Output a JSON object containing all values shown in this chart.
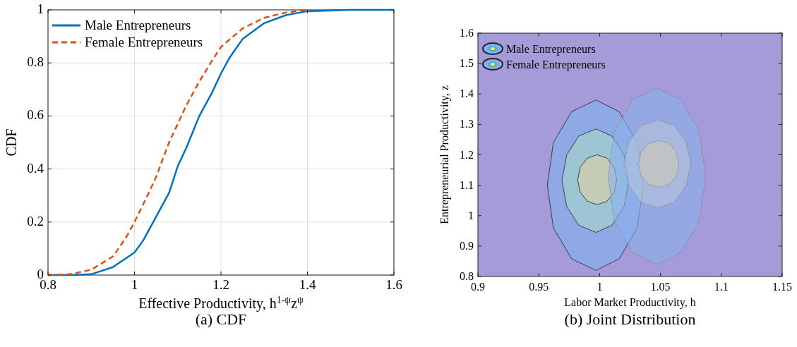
{
  "chart_data": [
    {
      "type": "line",
      "title": "(a) CDF",
      "xlabel": "Effective Productivity, h$^{1-ψ}$z$^{ψ}$",
      "ylabel": "CDF",
      "xlim": [
        0.8,
        1.6
      ],
      "xticks": [
        0.8,
        1,
        1.2,
        1.4,
        1.6
      ],
      "ylim": [
        0,
        1
      ],
      "yticks": [
        0,
        0.2,
        0.4,
        0.6,
        0.8,
        1
      ],
      "grid": true,
      "legend": "top left",
      "series": [
        {
          "name": "Male Entrepreneurs",
          "color": "#0072bd",
          "line_style": "solid",
          "x": [
            0.8,
            0.85,
            0.9,
            0.95,
            1,
            1.02,
            1.05,
            1.08,
            1.1,
            1.12,
            1.15,
            1.18,
            1.2,
            1.22,
            1.25,
            1.3,
            1.35,
            1.4,
            1.5,
            1.6
          ],
          "values": [
            0,
            0,
            0.003,
            0.03,
            0.085,
            0.13,
            0.22,
            0.31,
            0.41,
            0.48,
            0.6,
            0.69,
            0.76,
            0.82,
            0.89,
            0.95,
            0.98,
            0.995,
            1,
            1
          ]
        },
        {
          "name": "Female Entrepreneurs",
          "color": "#d95319",
          "line_style": "dashed",
          "x": [
            0.8,
            0.85,
            0.9,
            0.95,
            0.98,
            1,
            1.03,
            1.05,
            1.08,
            1.1,
            1.12,
            1.15,
            1.18,
            1.2,
            1.25,
            1.3,
            1.35,
            1.4
          ],
          "values": [
            0,
            0.003,
            0.02,
            0.07,
            0.14,
            0.2,
            0.3,
            0.37,
            0.5,
            0.57,
            0.64,
            0.73,
            0.81,
            0.86,
            0.93,
            0.97,
            0.99,
            1
          ]
        }
      ]
    },
    {
      "type": "area",
      "title": "(b) Joint Distribution",
      "xlabel": "Labor Market Productivity, h",
      "ylabel": "Entrepreneurial Productivity, z",
      "xlim": [
        0.9,
        1.15
      ],
      "xticks": [
        0.9,
        0.95,
        1,
        1.05,
        1.1,
        1.15
      ],
      "ylim": [
        0.8,
        1.6
      ],
      "yticks": [
        0.8,
        0.9,
        1,
        1.1,
        1.2,
        1.3,
        1.4,
        1.5,
        1.6
      ],
      "legend": "top left",
      "bands": [
        {
          "axis": "y",
          "from": 0.8,
          "to": 1.6,
          "color": "#a59bd8"
        }
      ],
      "series": [
        {
          "name": "Male Entrepreneurs",
          "color": "#7fb2ee",
          "line_style": "solid",
          "x": [
            1.036,
            1.031,
            1.016,
            0.997,
            0.977,
            0.962,
            0.957,
            0.962,
            0.977,
            0.997,
            1.016,
            1.031,
            1.036
          ],
          "values": [
            1.1,
            1.24,
            1.342,
            1.38,
            1.342,
            1.24,
            1.1,
            0.96,
            0.858,
            0.82,
            0.858,
            0.96,
            1.1
          ]
        },
        {
          "color": "#a7d8c8",
          "line_style": "solid",
          "x": [
            1.024,
            1.02,
            1.01,
            0.997,
            0.983,
            0.973,
            0.969,
            0.973,
            0.983,
            0.997,
            1.01,
            1.02,
            1.024
          ],
          "values": [
            1.115,
            1.2,
            1.262,
            1.285,
            1.262,
            1.2,
            1.115,
            1.03,
            0.968,
            0.945,
            0.968,
            1.03,
            1.115
          ]
        },
        {
          "color": "#e0d0a0",
          "line_style": "solid",
          "x": [
            1.014,
            1.012,
            1.006,
            0.998,
            0.99,
            0.984,
            0.982,
            0.984,
            0.99,
            0.998,
            1.006,
            1.012,
            1.014
          ],
          "values": [
            1.118,
            1.159,
            1.189,
            1.2,
            1.189,
            1.159,
            1.118,
            1.077,
            1.047,
            1.036,
            1.047,
            1.077,
            1.118
          ]
        },
        {
          "name": "Female Entrepreneurs",
          "color": "#8ab0ec",
          "line_style": "dotted",
          "x": [
            1.087,
            1.082,
            1.067,
            1.047,
            1.027,
            1.012,
            1.007,
            1.012,
            1.027,
            1.047,
            1.067,
            1.082,
            1.087
          ],
          "values": [
            1.13,
            1.275,
            1.381,
            1.42,
            1.381,
            1.275,
            1.13,
            0.985,
            0.879,
            0.84,
            0.879,
            0.985,
            1.13
          ]
        },
        {
          "color": "#b8c4d8",
          "line_style": "dotted",
          "x": [
            1.075,
            1.071,
            1.061,
            1.048,
            1.034,
            1.024,
            1.02,
            1.024,
            1.034,
            1.048,
            1.061,
            1.071,
            1.075
          ],
          "values": [
            1.17,
            1.243,
            1.296,
            1.315,
            1.296,
            1.243,
            1.17,
            1.098,
            1.044,
            1.025,
            1.044,
            1.098,
            1.17
          ]
        },
        {
          "color": "#d0cab8",
          "line_style": "dotted",
          "x": [
            1.065,
            1.063,
            1.057,
            1.049,
            1.04,
            1.034,
            1.032,
            1.034,
            1.04,
            1.049,
            1.057,
            1.063,
            1.065
          ],
          "values": [
            1.17,
            1.209,
            1.237,
            1.247,
            1.237,
            1.209,
            1.17,
            1.131,
            1.103,
            1.093,
            1.103,
            1.131,
            1.17
          ]
        }
      ]
    }
  ]
}
